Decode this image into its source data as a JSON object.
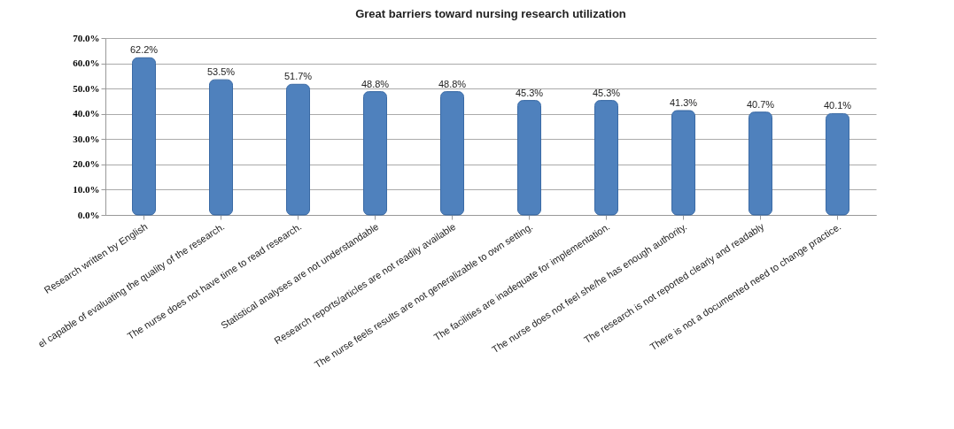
{
  "chart_data": {
    "type": "bar",
    "title": "Great barriers toward nursing research utilization",
    "categories": [
      "Research written by English",
      "el capable of evaluating the quality of the research.",
      "The nurse does not have time to read research.",
      "Statistical analyses are not understandable",
      "Research reports/articles are not readily available",
      "The nurse feels results are not generalizable to own setting.",
      "The facilities are inadequate for implementation.",
      "The nurse does not feel she/he has enough authority.",
      "The research is not reported clearly and readably",
      "There is not a documented need to change practice."
    ],
    "values": [
      62.2,
      53.5,
      51.7,
      48.8,
      48.8,
      45.3,
      45.3,
      41.3,
      40.7,
      40.1
    ],
    "value_labels": [
      "62.2%",
      "53.5%",
      "51.7%",
      "48.8%",
      "48.8%",
      "45.3%",
      "45.3%",
      "41.3%",
      "40.7%",
      "40.1%"
    ],
    "color": "#4f81bd",
    "ylim": [
      0,
      70
    ],
    "yticks": [
      {
        "value": 0,
        "label": "0.0%"
      },
      {
        "value": 10,
        "label": "10.0%"
      },
      {
        "value": 20,
        "label": "20.0%"
      },
      {
        "value": 30,
        "label": "30.0%"
      },
      {
        "value": 40,
        "label": "40.0%"
      },
      {
        "value": 50,
        "label": "50.0%"
      },
      {
        "value": 60,
        "label": "60.0%"
      },
      {
        "value": 70,
        "label": "70.0%"
      }
    ],
    "grid": "y"
  }
}
